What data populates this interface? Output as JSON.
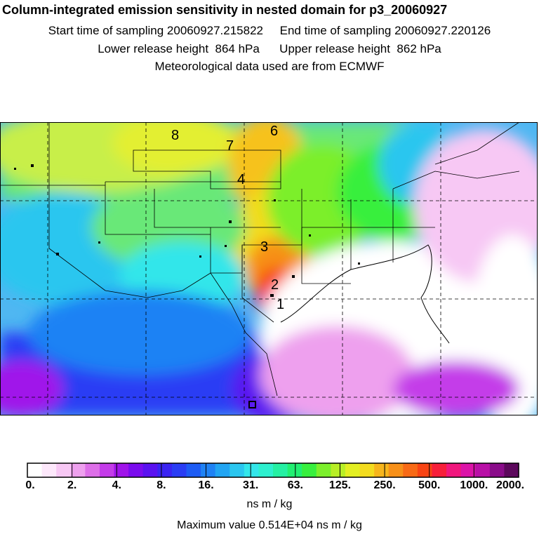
{
  "header": {
    "title": "Column-integrated emission sensitivity in nested domain for p3_20060927",
    "sampling_line": "Start time of sampling 20060927.215822     End time of sampling 20060927.220126",
    "height_line": "Lower release height  864 hPa      Upper release height  862 hPa",
    "met_line": "Meteorological data used are from ECMWF"
  },
  "map": {
    "trajectory_labels": [
      "1",
      "2",
      "3",
      "4",
      "6",
      "7",
      "8"
    ],
    "receptor_marker": "square-marker"
  },
  "legend": {
    "tick_labels": [
      "0.",
      "2.",
      "4.",
      "8.",
      "16.",
      "31.",
      "63.",
      "125.",
      "250.",
      "500.",
      "1000.",
      "2000."
    ],
    "colors": [
      "#ffffff",
      "#fde8fb",
      "#f7c8f4",
      "#eea0ee",
      "#dd6fe8",
      "#c43ce9",
      "#a014ea",
      "#7a0cee",
      "#5a12f0",
      "#3a24f2",
      "#2a3df4",
      "#1e5cf4",
      "#1f82f4",
      "#22a5f2",
      "#2bc6ef",
      "#33e6ea",
      "#2ef0cf",
      "#25f0a3",
      "#22ef72",
      "#38ef3e",
      "#7cef2c",
      "#b8ef26",
      "#e3ef22",
      "#f3dc1f",
      "#f6b51c",
      "#f79019",
      "#f86a16",
      "#f84414",
      "#f71f3a",
      "#f0177d",
      "#dc14a8",
      "#b810a6",
      "#8a0c8a",
      "#5c085c"
    ],
    "unit": "ns m / kg",
    "max_value": "Maximum value  0.514E+04 ns m / kg"
  }
}
